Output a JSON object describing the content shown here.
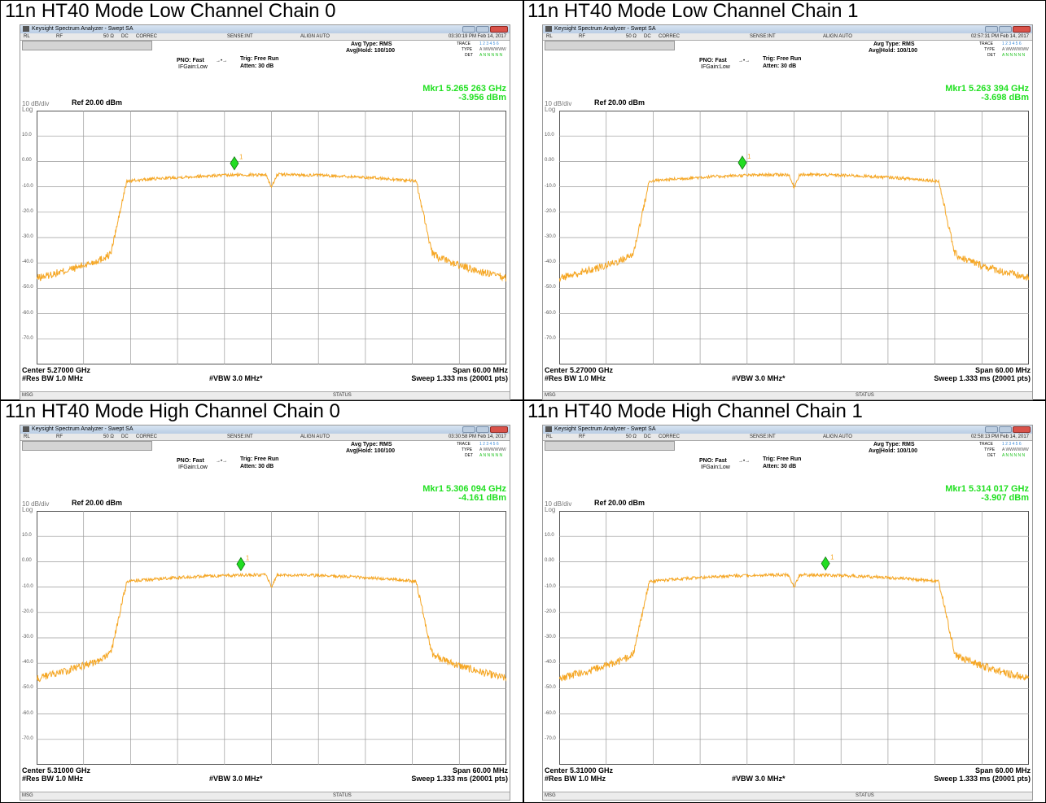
{
  "colors": {
    "trace": "#f5a623",
    "marker": "#22dd22",
    "marker_label": "#f5a623",
    "grid": "#9a9a9a"
  },
  "common": {
    "app_title": "Keysight Spectrum Analyzer - Swept SA",
    "status_row": {
      "rl": "RL",
      "rf": "RF",
      "ohm": "50 Ω",
      "dc": "DC",
      "correc": "CORREC",
      "sense": "SENSE:INT",
      "align": "ALIGN AUTO"
    },
    "avg_type": "Avg Type: RMS",
    "avg_hold": "Avg|Hold: 100/100",
    "trace_label": "TRACE",
    "trace_nums": "1 2 3 4 5 6",
    "type_label": "TYPE",
    "type_val": "A WWWWWW",
    "det_label": "DET",
    "det_val": "A N N N N N",
    "pno": "PNO: Fast",
    "ifgain": "IFGain:Low",
    "trig": "Trig: Free Run",
    "atten": "Atten: 30 dB",
    "scale": "10 dB/div",
    "log": "Log",
    "ref": "Ref 20.00 dBm",
    "res_bw": "#Res BW 1.0 MHz",
    "vbw": "#VBW 3.0 MHz*",
    "span": "Span 60.00 MHz",
    "sweep": "Sweep  1.333 ms (20001 pts)",
    "msg": "MSG",
    "status": "STATUS",
    "marker_number": "1",
    "y_ticks": [
      "10.0",
      "0.00",
      "-10.0",
      "-20.0",
      "-30.0",
      "-40.0",
      "-50.0",
      "-60.0",
      "-70.0"
    ]
  },
  "panels": [
    {
      "title": "11n HT40 Mode Low Channel Chain 0",
      "time": "03:30:19 PM Feb 14, 2017",
      "mkr_freq": "Mkr1 5.265 263 GHz",
      "mkr_level": "-3.956 dBm",
      "center": "Center 5.27000 GHz",
      "chart_data": {
        "type": "line",
        "marker_freq_ghz": 5.265263,
        "marker_level_dbm": -3.956,
        "center_ghz": 5.27,
        "span_mhz": 60,
        "ylim": [
          -80,
          20
        ]
      }
    },
    {
      "title": "11n HT40 Mode Low Channel Chain 1",
      "time": "02:57:31 PM Feb 14, 2017",
      "mkr_freq": "Mkr1 5.263 394 GHz",
      "mkr_level": "-3.698 dBm",
      "center": "Center 5.27000 GHz",
      "chart_data": {
        "type": "line",
        "marker_freq_ghz": 5.263394,
        "marker_level_dbm": -3.698,
        "center_ghz": 5.27,
        "span_mhz": 60,
        "ylim": [
          -80,
          20
        ]
      }
    },
    {
      "title": "11n HT40 Mode High Channel Chain 0",
      "time": "03:30:58 PM Feb 14, 2017",
      "mkr_freq": "Mkr1 5.306 094 GHz",
      "mkr_level": "-4.161 dBm",
      "center": "Center 5.31000 GHz",
      "chart_data": {
        "type": "line",
        "marker_freq_ghz": 5.306094,
        "marker_level_dbm": -4.161,
        "center_ghz": 5.31,
        "span_mhz": 60,
        "ylim": [
          -80,
          20
        ]
      }
    },
    {
      "title": "11n HT40 Mode High Channel Chain 1",
      "time": "02:58:13 PM Feb 14, 2017",
      "mkr_freq": "Mkr1 5.314 017 GHz",
      "mkr_level": "-3.907 dBm",
      "center": "Center 5.31000 GHz",
      "chart_data": {
        "type": "line",
        "marker_freq_ghz": 5.314017,
        "marker_level_dbm": -3.907,
        "center_ghz": 5.31,
        "span_mhz": 60,
        "ylim": [
          -80,
          20
        ]
      }
    }
  ]
}
